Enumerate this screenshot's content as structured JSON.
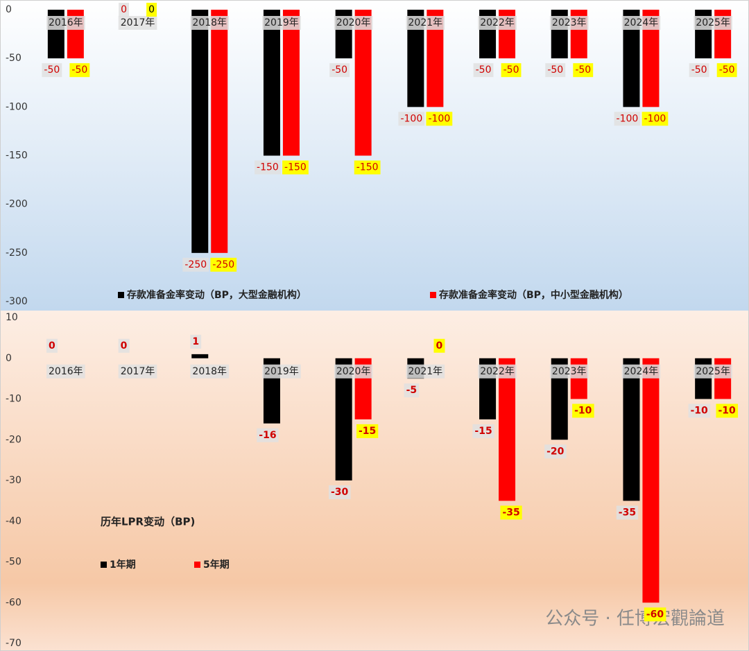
{
  "chart_data": [
    {
      "type": "bar",
      "categories": [
        "2016年",
        "2017年",
        "2018年",
        "2019年",
        "2020年",
        "2021年",
        "2022年",
        "2023年",
        "2024年",
        "2025年"
      ],
      "series": [
        {
          "name": "存款准备金率变动（BP，大型金融机构）",
          "color": "#000000",
          "values": [
            -50,
            0,
            -250,
            -150,
            -50,
            -100,
            -50,
            -50,
            -100,
            -50
          ]
        },
        {
          "name": "存款准备金率变动（BP，中小型金融机构）",
          "color": "#ff0000",
          "values": [
            -50,
            0,
            -250,
            -150,
            -150,
            -100,
            -50,
            -50,
            -100,
            -50
          ]
        }
      ],
      "ylim": [
        -300,
        0
      ],
      "yticks": [
        0,
        -50,
        -100,
        -150,
        -200,
        -250,
        -300
      ],
      "grid": false
    },
    {
      "type": "bar",
      "title": "历年LPR变动（BP)",
      "categories": [
        "2016年",
        "2017年",
        "2018年",
        "2019年",
        "2020年",
        "2021年",
        "2022年",
        "2023年",
        "2024年",
        "2025年"
      ],
      "series": [
        {
          "name": "1年期",
          "color": "#000000",
          "values": [
            0,
            0,
            1,
            -16,
            -30,
            -5,
            -15,
            -20,
            -35,
            -10
          ]
        },
        {
          "name": "5年期",
          "color": "#ff0000",
          "values": [
            null,
            null,
            null,
            null,
            -15,
            0,
            -35,
            -10,
            -60,
            -10
          ]
        }
      ],
      "ylim": [
        -70,
        10
      ],
      "yticks": [
        10,
        0,
        -10,
        -20,
        -30,
        -40,
        -50,
        -60,
        -70
      ],
      "grid": false
    }
  ],
  "watermark": "公众号 · 任博宏觀論道"
}
